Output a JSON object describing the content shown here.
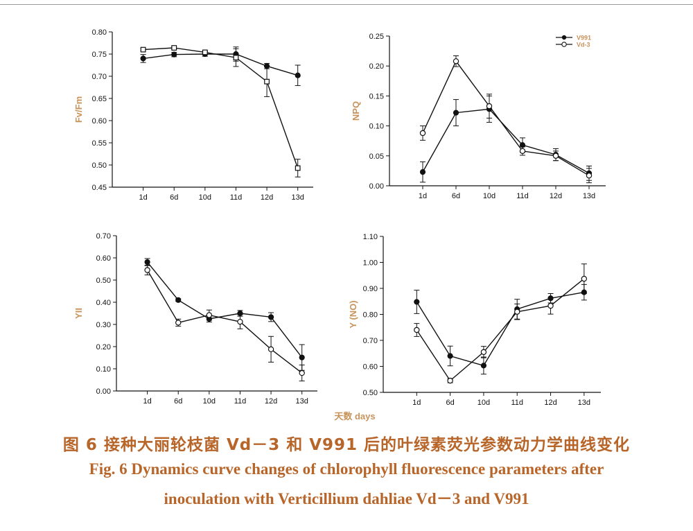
{
  "figure": {
    "shared_xlabel": "天数  days",
    "caption_cn": "图 6    接种大丽轮枝菌 Vd－3 和 V991 后的叶绿素荧光参数动力学曲线变化",
    "caption_en_line1": "Fig. 6    Dynamics curve changes of chlorophyll fluorescence parameters after",
    "caption_en_line2": "inoculation with Verticillium dahliae Vd－3 and V991",
    "colors": {
      "axis": "#111111",
      "series": "#111111",
      "axis_label": "#c8935a",
      "caption": "#b8652a"
    }
  },
  "chart_data": [
    {
      "type": "line",
      "panel": "top-left",
      "ylabel": "Fv/Fm",
      "categories": [
        "1d",
        "6d",
        "10d",
        "11d",
        "12d",
        "13d"
      ],
      "ylim": [
        0.45,
        0.8
      ],
      "yticks": [
        "0.45",
        "0.50",
        "0.55",
        "0.60",
        "0.65",
        "0.70",
        "0.75",
        "0.80"
      ],
      "legend": false,
      "series": [
        {
          "name": "V991",
          "marker": "filled-circle",
          "values": [
            0.74,
            0.749,
            0.75,
            0.75,
            0.723,
            0.702
          ],
          "errors": [
            0.009,
            0.005,
            0.005,
            0.016,
            0.006,
            0.023
          ]
        },
        {
          "name": "Vd-3",
          "marker": "open-square",
          "values": [
            0.76,
            0.764,
            0.754,
            0.742,
            0.688,
            0.493
          ],
          "errors": [
            0.003,
            0.003,
            0.003,
            0.02,
            0.034,
            0.02
          ]
        }
      ]
    },
    {
      "type": "line",
      "panel": "top-right",
      "ylabel": "NPQ",
      "categories": [
        "1d",
        "6d",
        "10d",
        "11d",
        "12d",
        "13d"
      ],
      "ylim": [
        0.0,
        0.25
      ],
      "yticks": [
        "0.00",
        "0.05",
        "0.10",
        "0.15",
        "0.20",
        "0.25"
      ],
      "legend": true,
      "legend_position": "top-right",
      "series": [
        {
          "name": "V991",
          "marker": "filled-circle",
          "values": [
            0.023,
            0.122,
            0.128,
            0.068,
            0.052,
            0.021
          ],
          "errors": [
            0.017,
            0.022,
            0.022,
            0.012,
            0.01,
            0.012
          ]
        },
        {
          "name": "Vd-3",
          "marker": "open-circle",
          "values": [
            0.088,
            0.208,
            0.133,
            0.058,
            0.05,
            0.017
          ],
          "errors": [
            0.012,
            0.009,
            0.02,
            0.007,
            0.008,
            0.012
          ]
        }
      ]
    },
    {
      "type": "line",
      "panel": "bottom-left",
      "ylabel": "YII",
      "categories": [
        "1d",
        "6d",
        "10d",
        "11d",
        "12d",
        "13d"
      ],
      "ylim": [
        0.0,
        0.7
      ],
      "yticks": [
        "0.00",
        "0.10",
        "0.20",
        "0.30",
        "0.40",
        "0.50",
        "0.60",
        "0.70"
      ],
      "legend": false,
      "series": [
        {
          "name": "V991",
          "marker": "filled-circle",
          "values": [
            0.581,
            0.41,
            0.325,
            0.35,
            0.333,
            0.151
          ],
          "errors": [
            0.016,
            0.006,
            0.014,
            0.013,
            0.02,
            0.058
          ]
        },
        {
          "name": "Vd-3",
          "marker": "open-circle",
          "values": [
            0.545,
            0.308,
            0.342,
            0.312,
            0.188,
            0.081
          ],
          "errors": [
            0.022,
            0.016,
            0.023,
            0.032,
            0.058,
            0.036
          ]
        }
      ]
    },
    {
      "type": "line",
      "panel": "bottom-right",
      "ylabel": "Y (NO)",
      "categories": [
        "1d",
        "6d",
        "10d",
        "11d",
        "12d",
        "13d"
      ],
      "ylim": [
        0.5,
        1.1
      ],
      "yticks": [
        "0.50",
        "0.60",
        "0.70",
        "0.80",
        "0.90",
        "1.00",
        "1.10"
      ],
      "legend": false,
      "series": [
        {
          "name": "V991",
          "marker": "filled-circle",
          "values": [
            0.848,
            0.64,
            0.603,
            0.82,
            0.862,
            0.885
          ],
          "errors": [
            0.045,
            0.038,
            0.033,
            0.038,
            0.018,
            0.03
          ]
        },
        {
          "name": "Vd-3",
          "marker": "open-circle",
          "values": [
            0.74,
            0.545,
            0.655,
            0.81,
            0.833,
            0.937
          ],
          "errors": [
            0.025,
            0.008,
            0.022,
            0.03,
            0.032,
            0.057
          ]
        }
      ]
    }
  ]
}
